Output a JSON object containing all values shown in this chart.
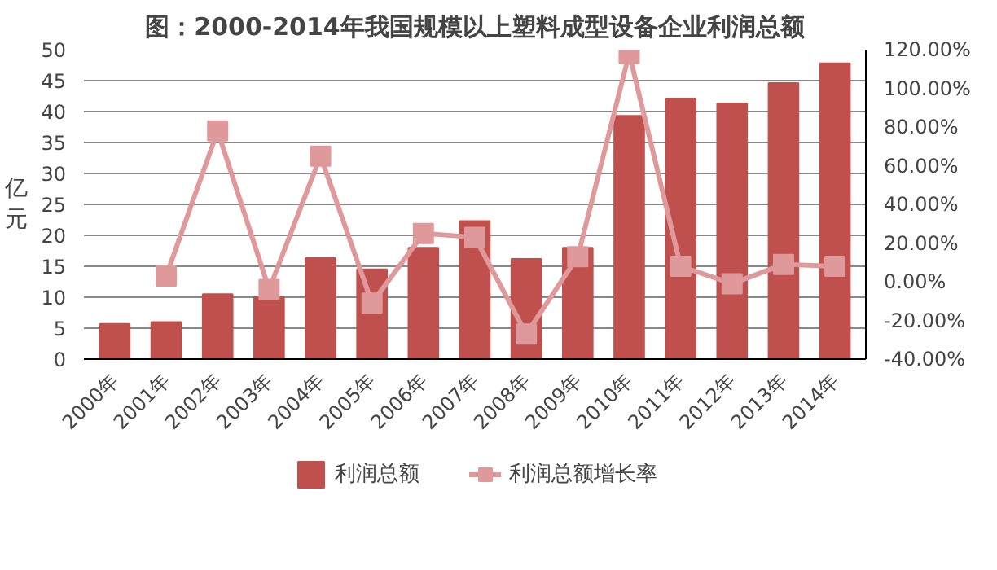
{
  "chart_data": {
    "type": "bar",
    "title": "图：2000-2014年我国规模以上塑料成型设备企业利润总额",
    "ylabel": "亿元",
    "categories": [
      "2000年",
      "2001年",
      "2002年",
      "2003年",
      "2004年",
      "2005年",
      "2006年",
      "2007年",
      "2008年",
      "2009年",
      "2010年",
      "2011年",
      "2012年",
      "2013年",
      "2014年"
    ],
    "series": [
      {
        "name": "利润总额",
        "color": "#c0504d",
        "values": [
          5.7,
          6.0,
          10.5,
          10.0,
          16.3,
          14.5,
          18.0,
          22.3,
          16.2,
          18.0,
          39.3,
          42.1,
          41.3,
          44.6,
          47.8
        ]
      },
      {
        "name": "利润总额增长率",
        "type": "line",
        "axis": "y2",
        "color": "#e0999a",
        "marker": "square",
        "values": [
          null,
          3,
          78,
          -4,
          65,
          -11,
          25,
          23,
          -27,
          13,
          118,
          8,
          -1,
          9,
          8
        ]
      }
    ],
    "ylim": [
      0,
      50
    ],
    "yticks": [
      0,
      5,
      10,
      15,
      20,
      25,
      30,
      35,
      40,
      45,
      50
    ],
    "y2lim": [
      -40,
      120
    ],
    "y2ticks": [
      {
        "value": -40,
        "label": "-40.00%"
      },
      {
        "value": -20,
        "label": "-20.00%"
      },
      {
        "value": 0,
        "label": "0.00%"
      },
      {
        "value": 20,
        "label": "20.00%"
      },
      {
        "value": 40,
        "label": "40.00%"
      },
      {
        "value": 60,
        "label": "60.00%"
      },
      {
        "value": 80,
        "label": "80.00%"
      },
      {
        "value": 100,
        "label": "100.00%"
      },
      {
        "value": 120,
        "label": "120.00%"
      }
    ],
    "grid": "y",
    "legend": "bottom"
  }
}
